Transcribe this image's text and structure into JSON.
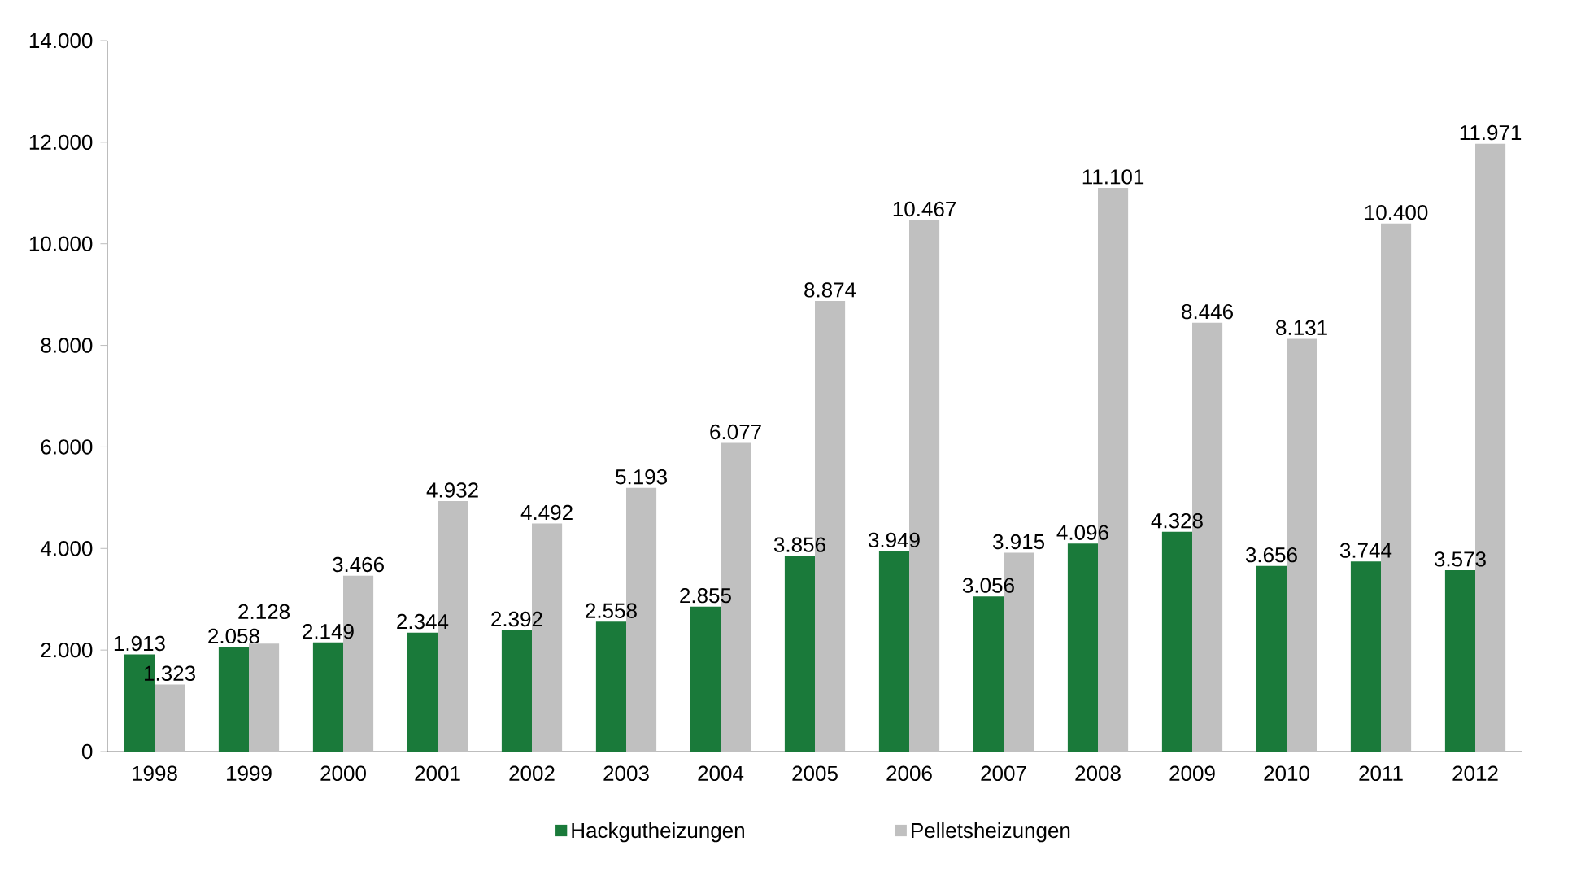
{
  "chart_data": {
    "type": "bar",
    "categories": [
      "1998",
      "1999",
      "2000",
      "2001",
      "2002",
      "2003",
      "2004",
      "2005",
      "2006",
      "2007",
      "2008",
      "2009",
      "2010",
      "2011",
      "2012"
    ],
    "series": [
      {
        "name": "Hackgutheizungen",
        "color": "#1a7a3a",
        "values": [
          1913,
          2058,
          2149,
          2344,
          2392,
          2558,
          2855,
          3856,
          3949,
          3056,
          4096,
          4328,
          3656,
          3744,
          3573
        ],
        "value_labels": [
          "1.913",
          "2.058",
          "2.149",
          "2.344",
          "2.392",
          "2.558",
          "2.855",
          "3.856",
          "3.949",
          "3.056",
          "4.096",
          "4.328",
          "3.656",
          "3.744",
          "3.573"
        ]
      },
      {
        "name": "Pelletsheizungen",
        "color": "#c0c0c0",
        "values": [
          1323,
          2128,
          3466,
          4932,
          4492,
          5193,
          6077,
          8874,
          10467,
          3915,
          11101,
          8446,
          8131,
          10400,
          11971
        ],
        "value_labels": [
          "1.323",
          "2.128",
          "3.466",
          "4.932",
          "4.492",
          "5.193",
          "6.077",
          "8.874",
          "10.467",
          "3.915",
          "11.101",
          "8.446",
          "8.131",
          "10.400",
          "11.971"
        ]
      }
    ],
    "ylim": [
      0,
      14000
    ],
    "yticks": [
      {
        "value": 0,
        "label": "0"
      },
      {
        "value": 2000,
        "label": "2.000"
      },
      {
        "value": 4000,
        "label": "4.000"
      },
      {
        "value": 6000,
        "label": "6.000"
      },
      {
        "value": 8000,
        "label": "8.000"
      },
      {
        "value": 10000,
        "label": "10.000"
      },
      {
        "value": 12000,
        "label": "12.000"
      },
      {
        "value": 14000,
        "label": "14.000"
      }
    ],
    "legend": "bottom"
  }
}
